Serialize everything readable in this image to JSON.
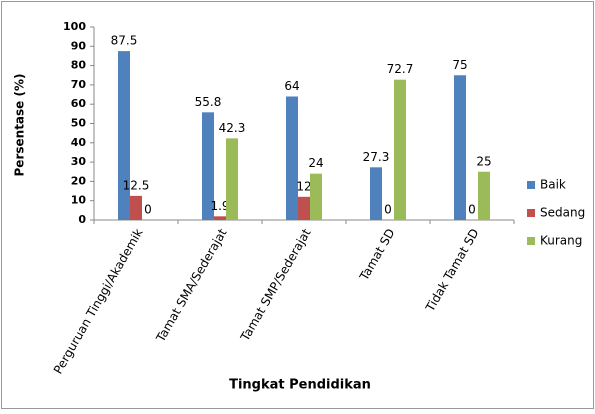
{
  "chart_data": {
    "type": "bar",
    "categories": [
      "Perguruan Tinggi/Akademik",
      "Tamat SMA/Sederajat",
      "Tamat SMP/Sederajat",
      "Tamat SD",
      "Tidak Tamat SD"
    ],
    "series": [
      {
        "name": "Baik",
        "color": "#4f81bd",
        "values": [
          87.5,
          55.8,
          64,
          27.3,
          75
        ]
      },
      {
        "name": "Sedang",
        "color": "#c0504d",
        "values": [
          12.5,
          1.9,
          12,
          0,
          0
        ]
      },
      {
        "name": "Kurang",
        "color": "#9bbb59",
        "values": [
          0,
          42.3,
          24,
          72.7,
          25
        ]
      }
    ],
    "ylabel": "Persentase (%)",
    "xlabel": "Tingkat Pendidikan",
    "ylim": [
      0,
      100
    ],
    "yticks": [
      0,
      10,
      20,
      30,
      40,
      50,
      60,
      70,
      80,
      90,
      100
    ],
    "grid": false,
    "legend": "right"
  }
}
